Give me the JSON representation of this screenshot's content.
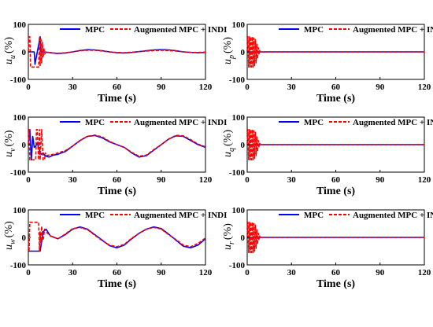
{
  "chart_data": [
    {
      "type": "line",
      "ylabel": "u",
      "ysub": "u",
      "ylabel_unit": "(%)",
      "xlabel": "Time (s)",
      "xlim": [
        0,
        120
      ],
      "ylim": [
        -100,
        100
      ],
      "xticks": [
        0,
        30,
        60,
        90,
        120
      ],
      "yticks": [
        -100,
        0,
        100
      ],
      "series": [
        {
          "name": "MPC",
          "color": "#0000ff",
          "dash": "solid",
          "x": [
            0,
            4,
            4.5,
            8,
            8.5,
            10,
            15,
            20,
            25,
            30,
            35,
            40,
            45,
            50,
            55,
            60,
            65,
            70,
            75,
            80,
            85,
            90,
            95,
            100,
            105,
            110,
            115,
            120
          ],
          "y": [
            0,
            0,
            -45,
            55,
            0,
            0,
            -3,
            -6,
            -4,
            0,
            5,
            8,
            7,
            4,
            0,
            -3,
            -4,
            -2,
            1,
            4,
            7,
            8,
            7,
            4,
            0,
            -2,
            -3,
            -2
          ]
        },
        {
          "name": "Augmented MPC + INDI",
          "color": "#ff0000",
          "dash": "dashed",
          "x": [
            0,
            0.5,
            1,
            1.5,
            7,
            7.5,
            8,
            8.5,
            9,
            9.5,
            10,
            10.5,
            11,
            12,
            15,
            20,
            25,
            30,
            35,
            40,
            45,
            50,
            55,
            60,
            65,
            70,
            75,
            80,
            85,
            90,
            95,
            100,
            105,
            110,
            115,
            120
          ],
          "y": [
            0,
            55,
            55,
            -55,
            -55,
            55,
            -50,
            50,
            -40,
            35,
            -20,
            15,
            -8,
            0,
            -3,
            -5,
            -3,
            0,
            4,
            6,
            6,
            3,
            0,
            -2,
            -3,
            -1,
            1,
            3,
            5,
            6,
            5,
            3,
            0,
            -2,
            -2,
            -1
          ]
        }
      ],
      "legend": "top"
    },
    {
      "type": "line",
      "ylabel": "u",
      "ysub": "p",
      "ylabel_unit": "(%)",
      "xlabel": "Time (s)",
      "xlim": [
        0,
        120
      ],
      "ylim": [
        -100,
        100
      ],
      "xticks": [
        0,
        30,
        60,
        90,
        120
      ],
      "yticks": [
        -100,
        0,
        100
      ],
      "series": [
        {
          "name": "MPC",
          "color": "#0000ff",
          "dash": "solid",
          "x": [
            0,
            120
          ],
          "y": [
            0,
            0
          ]
        },
        {
          "name": "Augmented MPC + INDI",
          "color": "#ff0000",
          "dash": "dashed",
          "x": [
            0,
            0.5,
            1,
            1.5,
            2,
            2.5,
            3,
            3.5,
            4,
            4.5,
            5,
            5.5,
            6,
            6.5,
            7,
            7.5,
            8,
            8.5,
            9,
            120
          ],
          "y": [
            0,
            55,
            -55,
            55,
            -55,
            55,
            -55,
            55,
            -55,
            50,
            -50,
            45,
            -40,
            30,
            -25,
            15,
            -10,
            5,
            0,
            0
          ]
        }
      ],
      "legend": "top"
    },
    {
      "type": "line",
      "ylabel": "u",
      "ysub": "v",
      "ylabel_unit": "(%)",
      "xlabel": "Time (s)",
      "xlim": [
        0,
        120
      ],
      "ylim": [
        -100,
        100
      ],
      "xticks": [
        0,
        30,
        60,
        90,
        120
      ],
      "yticks": [
        -100,
        0,
        100
      ],
      "series": [
        {
          "name": "MPC",
          "color": "#0000ff",
          "dash": "solid",
          "x": [
            0,
            1,
            2,
            3,
            4,
            5,
            6,
            7,
            8,
            9,
            10,
            11,
            12,
            14,
            17,
            20,
            25,
            30,
            35,
            40,
            45,
            50,
            55,
            60,
            65,
            70,
            75,
            80,
            85,
            90,
            95,
            100,
            105,
            110,
            115,
            120
          ],
          "y": [
            0,
            55,
            -55,
            30,
            -10,
            -5,
            5,
            -10,
            -30,
            -35,
            -30,
            -38,
            -42,
            -45,
            -38,
            -35,
            -25,
            -5,
            15,
            30,
            33,
            25,
            10,
            0,
            -10,
            -30,
            -45,
            -40,
            -20,
            0,
            20,
            32,
            30,
            15,
            0,
            -10
          ]
        },
        {
          "name": "Augmented MPC + INDI",
          "color": "#ff0000",
          "dash": "dashed",
          "x": [
            0,
            0.5,
            1,
            5,
            5.5,
            6,
            7,
            7.5,
            8,
            9,
            10,
            11,
            11.5,
            12,
            14,
            17,
            20,
            25,
            30,
            35,
            40,
            45,
            50,
            55,
            60,
            65,
            70,
            75,
            80,
            85,
            90,
            95,
            100,
            105,
            110,
            115,
            120
          ],
          "y": [
            0,
            55,
            -55,
            -55,
            55,
            55,
            -55,
            55,
            -55,
            55,
            -55,
            -55,
            -30,
            -40,
            -38,
            -35,
            -30,
            -22,
            -5,
            15,
            30,
            35,
            28,
            12,
            0,
            -10,
            -28,
            -42,
            -38,
            -18,
            0,
            20,
            34,
            32,
            18,
            2,
            -8
          ]
        }
      ],
      "legend": "top"
    },
    {
      "type": "line",
      "ylabel": "u",
      "ysub": "q",
      "ylabel_unit": "(%)",
      "xlabel": "Time (s)",
      "xlim": [
        0,
        120
      ],
      "ylim": [
        -100,
        100
      ],
      "xticks": [
        0,
        30,
        60,
        90,
        120
      ],
      "yticks": [
        -100,
        0,
        100
      ],
      "series": [
        {
          "name": "MPC",
          "color": "#0000ff",
          "dash": "solid",
          "x": [
            0,
            120
          ],
          "y": [
            0,
            0
          ]
        },
        {
          "name": "Augmented MPC + INDI",
          "color": "#ff0000",
          "dash": "dashed",
          "x": [
            0,
            0.5,
            1,
            1.5,
            2,
            2.5,
            3,
            3.5,
            4,
            4.5,
            5,
            5.5,
            6,
            6.5,
            7,
            7.5,
            8,
            8.5,
            9,
            120
          ],
          "y": [
            0,
            55,
            -55,
            55,
            -55,
            55,
            -55,
            55,
            -55,
            50,
            -50,
            45,
            -40,
            30,
            -25,
            15,
            -10,
            5,
            0,
            0
          ]
        }
      ],
      "legend": "top"
    },
    {
      "type": "line",
      "ylabel": "u",
      "ysub": "w",
      "ylabel_unit": "(%)",
      "xlabel": "Time (s)",
      "xlim": [
        0,
        120
      ],
      "ylim": [
        -100,
        100
      ],
      "xticks": [
        0,
        30,
        60,
        90,
        120
      ],
      "yticks": [
        -100,
        0,
        100
      ],
      "series": [
        {
          "name": "MPC",
          "color": "#0000ff",
          "dash": "solid",
          "x": [
            0,
            8,
            10,
            12,
            15,
            20,
            25,
            30,
            35,
            40,
            45,
            50,
            55,
            60,
            65,
            70,
            75,
            80,
            85,
            90,
            95,
            100,
            105,
            110,
            115,
            120
          ],
          "y": [
            -50,
            -50,
            20,
            30,
            5,
            -5,
            10,
            30,
            38,
            30,
            10,
            -10,
            -30,
            -38,
            -28,
            -5,
            15,
            30,
            38,
            32,
            12,
            -10,
            -32,
            -38,
            -28,
            -5
          ]
        },
        {
          "name": "Augmented MPC + INDI",
          "color": "#ff0000",
          "dash": "dashed",
          "x": [
            0,
            0.5,
            1,
            1.5,
            7,
            7.5,
            8,
            8.5,
            9,
            10,
            11,
            12,
            15,
            20,
            25,
            30,
            35,
            40,
            45,
            50,
            55,
            60,
            65,
            70,
            75,
            80,
            85,
            90,
            95,
            100,
            105,
            110,
            115,
            120
          ],
          "y": [
            0,
            -50,
            55,
            55,
            55,
            -50,
            20,
            -20,
            40,
            -10,
            30,
            20,
            5,
            -5,
            12,
            32,
            36,
            28,
            8,
            -12,
            -28,
            -34,
            -25,
            -3,
            15,
            30,
            36,
            30,
            10,
            -8,
            -28,
            -34,
            -22,
            -2
          ]
        }
      ],
      "legend": "top"
    },
    {
      "type": "line",
      "ylabel": "u",
      "ysub": "r",
      "ylabel_unit": "(%)",
      "xlabel": "Time (s)",
      "xlim": [
        0,
        120
      ],
      "ylim": [
        -100,
        100
      ],
      "xticks": [
        0,
        30,
        60,
        90,
        120
      ],
      "yticks": [
        -100,
        0,
        100
      ],
      "series": [
        {
          "name": "MPC",
          "color": "#0000ff",
          "dash": "solid",
          "x": [
            0,
            120
          ],
          "y": [
            0,
            0
          ]
        },
        {
          "name": "Augmented MPC + INDI",
          "color": "#ff0000",
          "dash": "dashed",
          "x": [
            0,
            0.5,
            1,
            1.5,
            2,
            2.5,
            3,
            3.5,
            4,
            4.5,
            5,
            5.5,
            6,
            6.5,
            7,
            7.5,
            8,
            8.5,
            9,
            120
          ],
          "y": [
            0,
            55,
            -55,
            55,
            -55,
            55,
            -55,
            55,
            -55,
            50,
            -50,
            45,
            -40,
            30,
            -25,
            15,
            -10,
            5,
            0,
            0
          ]
        }
      ],
      "legend": "top"
    }
  ]
}
